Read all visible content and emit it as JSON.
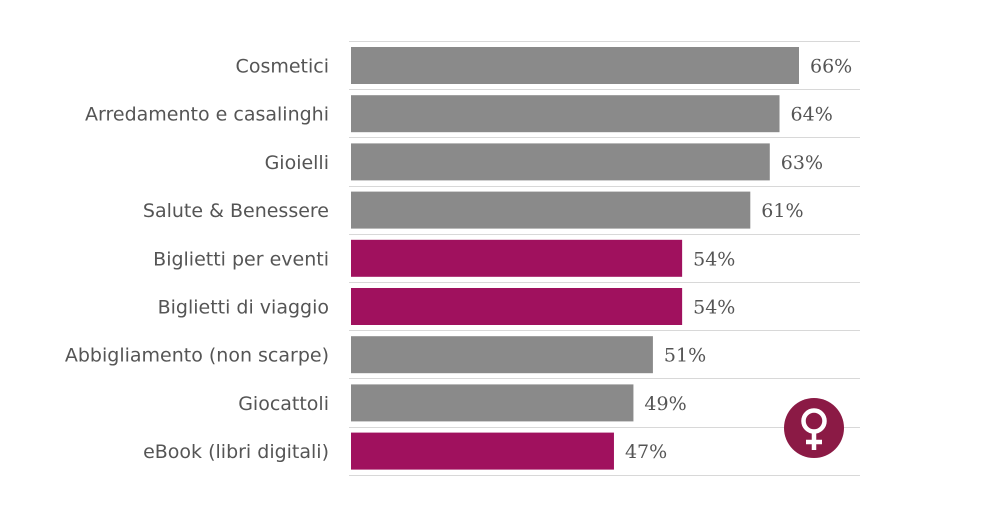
{
  "chart_data": {
    "type": "bar",
    "orientation": "horizontal",
    "categories": [
      "Cosmetici",
      "Arredamento e casalinghi",
      "Gioielli",
      "Salute & Benessere",
      "Biglietti per eventi",
      "Biglietti di viaggio",
      "Abbigliamento (non scarpe)",
      "Giocattoli",
      "eBook (libri digitali)"
    ],
    "values": [
      66,
      64,
      63,
      61,
      54,
      54,
      51,
      49,
      47
    ],
    "value_labels": [
      "66%",
      "64%",
      "63%",
      "61%",
      "54%",
      "54%",
      "51%",
      "49%",
      "47%"
    ],
    "highlighted": [
      false,
      false,
      false,
      false,
      true,
      true,
      false,
      false,
      true
    ],
    "xlim": [
      20,
      66
    ],
    "grid": true,
    "colors": {
      "default": "#8a8a8a",
      "highlight": "#a0115e",
      "grid": "#d8d8d8",
      "text": "#555555"
    },
    "icon": "female-symbol-icon",
    "icon_color": "#8b1a45"
  }
}
